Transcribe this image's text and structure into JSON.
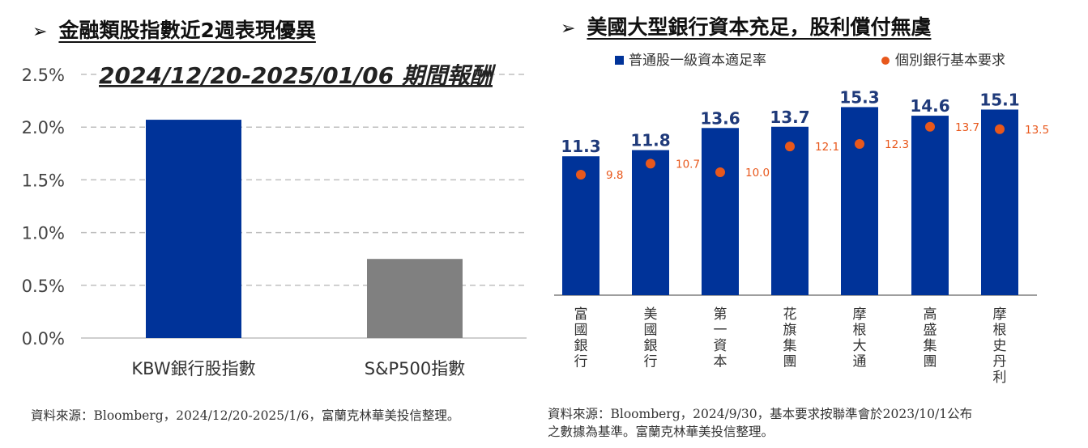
{
  "left": {
    "title": "金融類股指數近2週表現優異",
    "source": "資料來源：Bloomberg，2024/12/20-2025/1/6，富蘭克林華美投信整理。",
    "chart_data": {
      "type": "bar",
      "title": "2024/12/20-2025/01/06 期間報酬",
      "categories": [
        "KBW銀行股指數",
        "S&P500指數"
      ],
      "values": [
        2.07,
        0.75
      ],
      "unit": "%",
      "ylim": [
        0,
        2.5
      ],
      "yticks": [
        "0.0%",
        "0.5%",
        "1.0%",
        "1.5%",
        "2.0%",
        "2.5%"
      ],
      "grid": true,
      "colors": [
        "#003399",
        "#808080"
      ]
    }
  },
  "right": {
    "title": "美國大型銀行資本充足，股利償付無虞",
    "source_line1": "資料來源：Bloomberg，2024/9/30，基本要求按聯準會於2023/10/1公布",
    "source_line2": "之數據為基準。富蘭克林華美投信整理。",
    "chart_data": {
      "type": "bar",
      "categories": [
        "富國銀行",
        "美國銀行",
        "第一資本",
        "花旗集團",
        "摩根大通",
        "高盛集團",
        "摩根史丹利"
      ],
      "series": [
        {
          "name": "普通股一級資本適足率",
          "type": "bar",
          "color": "#003399",
          "values": [
            11.3,
            11.8,
            13.6,
            13.7,
            15.3,
            14.6,
            15.1
          ]
        },
        {
          "name": "個別銀行基本要求",
          "type": "scatter",
          "color": "#E8581C",
          "values": [
            9.8,
            10.7,
            10.0,
            12.1,
            12.3,
            13.7,
            13.5
          ]
        }
      ],
      "legend": "top",
      "ylim": [
        0,
        16.5
      ]
    }
  }
}
